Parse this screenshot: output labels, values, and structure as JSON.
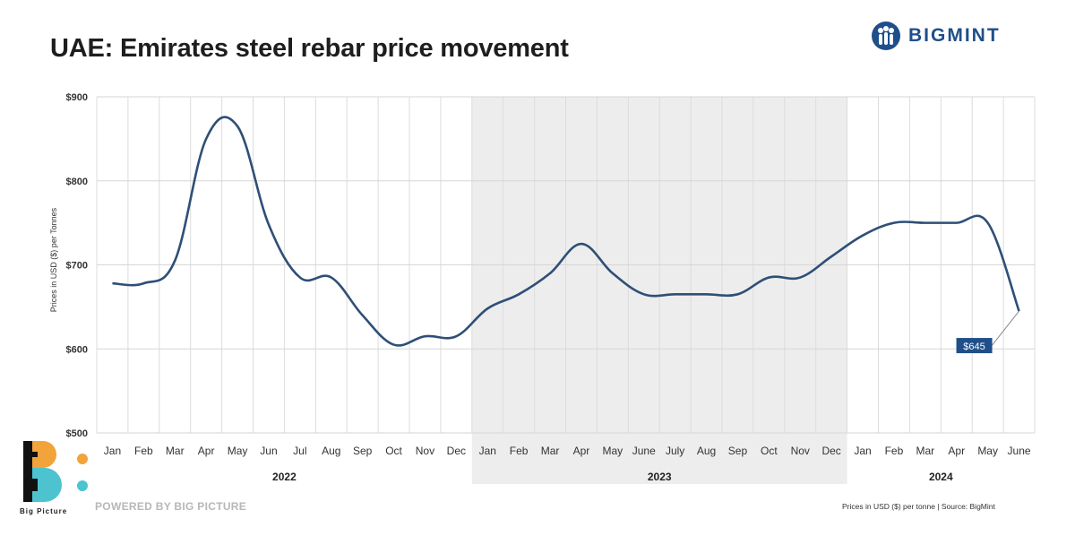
{
  "header": {
    "title": "UAE: Emirates steel rebar price movement",
    "brand": "BIGMINT"
  },
  "footer": {
    "powered_by": "POWERED BY BIG PICTURE",
    "logo_caption": "Big Picture",
    "source": "Prices in USD ($) per tonne | Source: BigMint"
  },
  "colors": {
    "line": "#2e4f77",
    "highlight_band": "#ededed",
    "label_bg": "#1f4f8a",
    "brand": "#1f4f8a",
    "logo_orange": "#f2a33a",
    "logo_teal": "#4cc3cf"
  },
  "chart_data": {
    "type": "line",
    "title": "UAE: Emirates steel rebar price movement",
    "ylabel": "Prices in USD ($) per Tonnes",
    "xlabel": "",
    "ylim": [
      500,
      900
    ],
    "yticks": [
      500,
      600,
      700,
      800,
      900
    ],
    "ytick_labels": [
      "$500",
      "$600",
      "$700",
      "$800",
      "$900"
    ],
    "grid": true,
    "categories": [
      "Jan",
      "Feb",
      "Mar",
      "Apr",
      "May",
      "Jun",
      "Jul",
      "Aug",
      "Sep",
      "Oct",
      "Nov",
      "Dec",
      "Jan",
      "Feb",
      "Mar",
      "Apr",
      "May",
      "June",
      "July",
      "Aug",
      "Sep",
      "Oct",
      "Nov",
      "Dec",
      "Jan",
      "Feb",
      "Mar",
      "Apr",
      "May",
      "June"
    ],
    "year_groups": [
      {
        "label": "2022",
        "start": 0,
        "end": 11,
        "shaded": false
      },
      {
        "label": "2023",
        "start": 12,
        "end": 23,
        "shaded": true
      },
      {
        "label": "2024",
        "start": 24,
        "end": 29,
        "shaded": false
      }
    ],
    "series": [
      {
        "values": [
          678,
          678,
          705,
          850,
          865,
          748,
          685,
          685,
          640,
          605,
          615,
          615,
          648,
          665,
          690,
          725,
          690,
          665,
          665,
          665,
          665,
          685,
          685,
          710,
          735,
          750,
          750,
          750,
          750,
          645
        ]
      }
    ],
    "annotation": {
      "label": "$645",
      "index": 29
    }
  }
}
